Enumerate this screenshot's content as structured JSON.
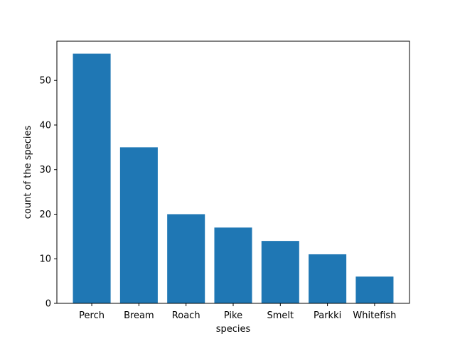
{
  "chart_data": {
    "type": "bar",
    "title": "",
    "xlabel": "species",
    "ylabel": "count of the species",
    "categories": [
      "Perch",
      "Bream",
      "Roach",
      "Pike",
      "Smelt",
      "Parkki",
      "Whitefish"
    ],
    "values": [
      56,
      35,
      20,
      17,
      14,
      11,
      6
    ],
    "ylim": [
      0,
      58.8
    ],
    "yticks": [
      0,
      10,
      20,
      30,
      40,
      50
    ],
    "bar_color": "#1f77b4",
    "grid": false,
    "legend": "none"
  }
}
